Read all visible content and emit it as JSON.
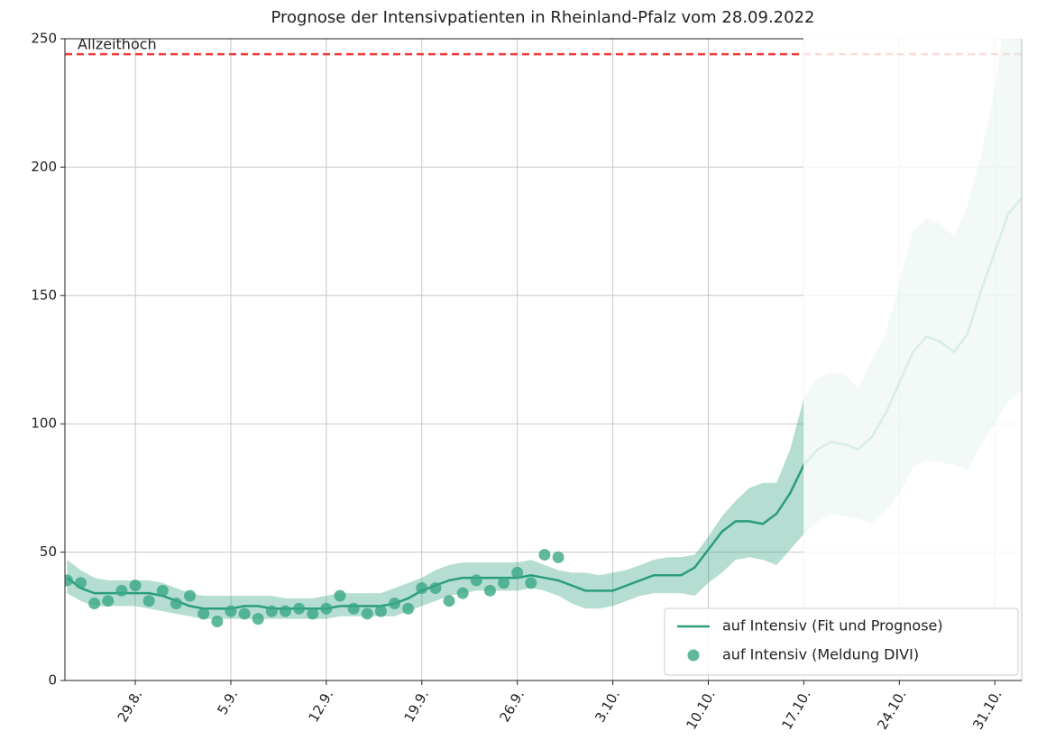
{
  "chart_data": {
    "type": "line",
    "title": "Prognose der Intensivpatienten in Rheinland-Pfalz vom 28.09.2022",
    "categories": [
      null,
      null,
      null,
      null,
      null,
      "29.8.",
      null,
      null,
      null,
      null,
      null,
      null,
      "5.9.",
      null,
      null,
      null,
      null,
      null,
      null,
      "12.9.",
      null,
      null,
      null,
      null,
      null,
      null,
      "19.9.",
      null,
      null,
      null,
      null,
      null,
      null,
      "26.9.",
      null,
      null,
      null,
      null,
      null,
      null,
      "3.10.",
      null,
      null,
      null,
      null,
      null,
      null,
      "10.10.",
      null,
      null,
      null,
      null,
      null,
      null,
      "17.10.",
      null,
      null,
      null,
      null,
      null,
      null,
      "24.10.",
      null,
      null,
      null,
      null,
      null,
      null,
      "31.10.",
      null,
      null
    ],
    "series": [
      {
        "name": "auf Intensiv (Fit und Prognose)",
        "style": "line",
        "color": "#2a9d7c",
        "values": [
          40,
          36,
          34,
          34,
          34,
          34,
          34,
          33,
          31,
          29,
          28,
          28,
          28,
          29,
          29,
          28,
          28,
          28,
          28,
          28,
          29,
          29,
          29,
          29,
          30,
          32,
          35,
          37,
          39,
          40,
          40,
          40,
          40,
          40,
          41,
          40,
          39,
          37,
          35,
          35,
          35,
          37,
          39,
          41,
          41,
          41,
          44,
          51,
          58,
          62,
          62,
          61,
          65,
          73,
          84,
          90,
          93,
          92,
          90,
          95,
          104,
          116,
          128,
          134,
          132,
          128,
          135,
          152,
          167,
          182,
          188
        ],
        "band_upper": [
          47,
          43,
          40,
          39,
          39,
          39,
          39,
          38,
          36,
          34,
          33,
          33,
          33,
          33,
          33,
          33,
          32,
          32,
          32,
          33,
          34,
          34,
          34,
          34,
          36,
          38,
          40,
          43,
          45,
          46,
          46,
          46,
          46,
          46,
          47,
          45,
          43,
          42,
          42,
          41,
          42,
          43,
          45,
          47,
          48,
          48,
          49,
          56,
          64,
          70,
          75,
          77,
          77,
          90,
          110,
          118,
          120,
          119,
          114,
          125,
          135,
          155,
          175,
          180,
          178,
          173,
          185,
          205,
          230,
          270,
          290
        ],
        "band_lower": [
          34,
          31,
          29,
          29,
          29,
          29,
          28,
          27,
          26,
          25,
          24,
          24,
          24,
          24,
          24,
          24,
          24,
          24,
          24,
          24,
          25,
          25,
          25,
          25,
          25,
          27,
          29,
          31,
          33,
          34,
          35,
          35,
          35,
          35,
          36,
          35,
          33,
          30,
          28,
          28,
          29,
          31,
          33,
          34,
          34,
          34,
          33,
          38,
          42,
          47,
          48,
          47,
          45,
          51,
          57,
          62,
          65,
          64,
          63,
          61,
          66,
          73,
          83,
          86,
          85,
          84,
          82,
          92,
          100,
          109,
          113
        ]
      },
      {
        "name": "auf Intensiv (Meldung DIVI)",
        "style": "scatter",
        "color": "#3aa884",
        "values": [
          39,
          38,
          30,
          31,
          35,
          37,
          31,
          35,
          30,
          33,
          26,
          23,
          27,
          26,
          24,
          27,
          27,
          28,
          26,
          28,
          33,
          28,
          26,
          27,
          30,
          28,
          36,
          36,
          31,
          34,
          39,
          35,
          38,
          42,
          38,
          49,
          48,
          null,
          null,
          null,
          null,
          null,
          null,
          null,
          null,
          null,
          null,
          null,
          null,
          null,
          null,
          null,
          null,
          null,
          null,
          null,
          null,
          null,
          null,
          null,
          null,
          null,
          null,
          null,
          null,
          null,
          null,
          null,
          null,
          null,
          null
        ]
      }
    ],
    "hline": {
      "value": 244,
      "label": "Allzeithoch",
      "color": "#f03a3a"
    },
    "ylim": [
      0,
      250
    ],
    "yticks": [
      0,
      50,
      100,
      150,
      200,
      250
    ],
    "grid": true,
    "legend": "lower right"
  }
}
